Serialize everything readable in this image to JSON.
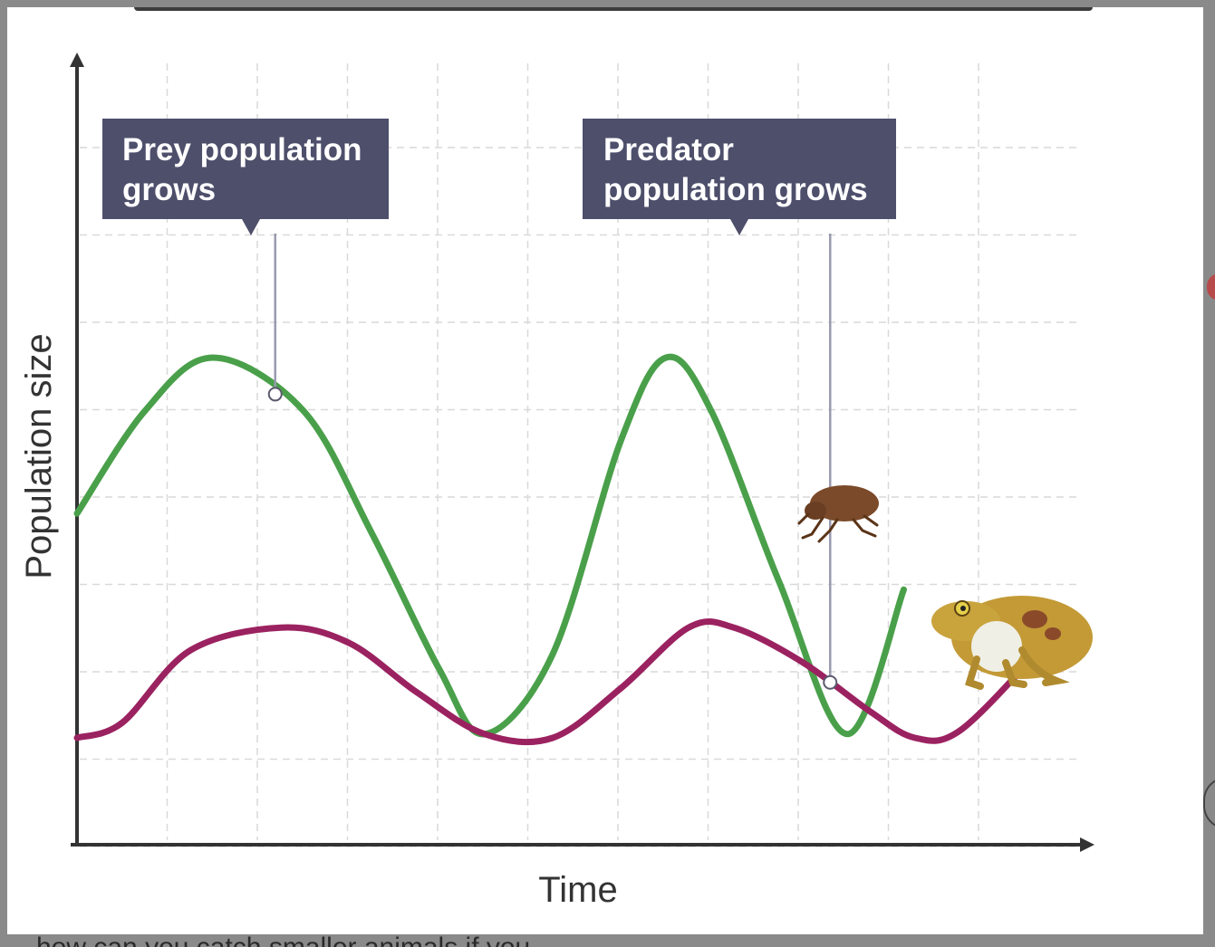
{
  "chart_data": {
    "type": "line",
    "xlabel": "Time",
    "ylabel": "Population size",
    "grid": true,
    "series": [
      {
        "role": "prey",
        "color": "#4aa04a",
        "x": [
          0,
          0.06,
          0.12,
          0.2,
          0.26,
          0.32,
          0.36,
          0.42,
          0.48,
          0.52,
          0.56,
          0.62,
          0.68,
          0.73
        ],
        "y": [
          5.9,
          8.6,
          10.0,
          8.6,
          5.4,
          1.8,
          0.1,
          2.2,
          7.8,
          10.0,
          8.6,
          4.1,
          0.1,
          3.9
        ]
      },
      {
        "role": "predator",
        "color": "#9b2260",
        "x": [
          0,
          0.04,
          0.1,
          0.18,
          0.24,
          0.3,
          0.36,
          0.42,
          0.48,
          0.54,
          0.58,
          0.64,
          0.7,
          0.74,
          0.78,
          0.85
        ],
        "y": [
          0.0,
          0.4,
          2.3,
          2.9,
          2.5,
          1.2,
          0.1,
          0.0,
          1.3,
          2.9,
          2.9,
          2.0,
          0.7,
          0.0,
          0.2,
          2.3
        ]
      }
    ],
    "annotations": [
      {
        "text_lines": [
          "Prey population",
          "grows"
        ],
        "target_series": "prey",
        "x": 0.175
      },
      {
        "text_lines": [
          "Predator",
          "population grows"
        ],
        "target_series": "predator",
        "x": 0.665
      }
    ],
    "pictures": [
      "flea-icon",
      "toad-icon"
    ]
  },
  "cutoff_text": "how can you catch smaller animals if you"
}
